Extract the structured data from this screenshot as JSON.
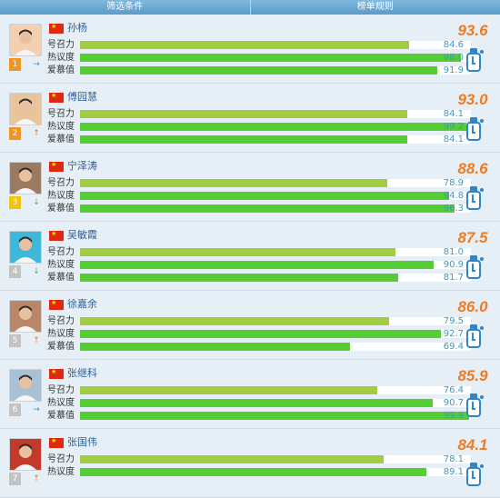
{
  "tabs": [
    "筛选条件",
    "榜单规则"
  ],
  "metric_labels": [
    "号召力",
    "热议度",
    "爱慕值"
  ],
  "colors": {
    "bar_light": "#a3cc45",
    "bar_green": "#56cc35",
    "score": "#ef7b22",
    "rank_orange": "#f19325",
    "rank_yellow": "#f1c40f",
    "rank_gray": "#c3c3c3"
  },
  "athletes": [
    {
      "rank": "1",
      "trend": "→",
      "name": "孙杨",
      "score": "93.6",
      "values": [
        "84.6",
        "98.0",
        "91.9"
      ],
      "levels": [
        84.6,
        98.0,
        91.9
      ],
      "trend_icon": "trend-right-icon",
      "rank_color": "#f19325"
    },
    {
      "rank": "2",
      "trend": "↑",
      "name": "傅园慧",
      "score": "93.0",
      "values": [
        "84.1",
        "99.2",
        "84.1"
      ],
      "levels": [
        84.1,
        99.2,
        84.1
      ],
      "trend_icon": "trend-up-icon",
      "rank_color": "#f19325"
    },
    {
      "rank": "3",
      "trend": "↓",
      "name": "宁泽涛",
      "score": "88.6",
      "values": [
        "78.9",
        "94.8",
        "96.3"
      ],
      "levels": [
        78.9,
        94.8,
        96.3
      ],
      "trend_icon": "trend-down-icon",
      "rank_color": "#f1c40f"
    },
    {
      "rank": "4",
      "trend": "↓",
      "name": "吴敏霞",
      "score": "87.5",
      "values": [
        "81.0",
        "90.9",
        "81.7"
      ],
      "levels": [
        81.0,
        90.9,
        81.7
      ],
      "trend_icon": "trend-down-icon",
      "rank_color": "#c3c3c3"
    },
    {
      "rank": "5",
      "trend": "↑",
      "name": "徐嘉余",
      "score": "86.0",
      "values": [
        "79.5",
        "92.7",
        "69.4"
      ],
      "levels": [
        79.5,
        92.7,
        69.4
      ],
      "trend_icon": "trend-up-icon",
      "rank_color": "#c3c3c3"
    },
    {
      "rank": "6",
      "trend": "→",
      "name": "张继科",
      "score": "85.9",
      "values": [
        "76.4",
        "90.7",
        "99.9"
      ],
      "levels": [
        76.4,
        90.7,
        99.9
      ],
      "trend_icon": "trend-right-icon",
      "rank_color": "#c3c3c3"
    },
    {
      "rank": "7",
      "trend": "↑",
      "name": "张国伟",
      "score": "84.1",
      "values": [
        "78.1",
        "89.1",
        ""
      ],
      "levels": [
        78.1,
        89.1,
        0
      ],
      "trend_icon": "trend-up-icon",
      "rank_color": "#c3c3c3"
    }
  ]
}
